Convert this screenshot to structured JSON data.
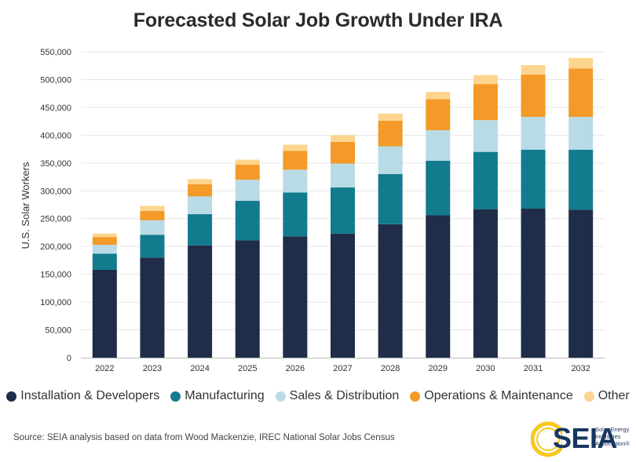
{
  "title": "Forecasted Solar Job Growth Under IRA",
  "source": "Source: SEIA analysis based on data from Wood Mackenzie, IREC National Solar Jobs Census",
  "logo": {
    "text": "SEIA",
    "tag_lines": [
      "Solar Energy",
      "Industries",
      "Association®"
    ]
  },
  "chart_data": {
    "type": "bar",
    "stacked": true,
    "title": "Forecasted Solar Job Growth Under IRA",
    "xlabel": "",
    "ylabel": "U.S. Solar Workers",
    "ylim": [
      0,
      550000
    ],
    "ytick_step": 50000,
    "ytick_labels": [
      "0",
      "50,000",
      "100,000",
      "150,000",
      "200,000",
      "250,000",
      "300,000",
      "350,000",
      "400,000",
      "450,000",
      "500,000",
      "550,000"
    ],
    "grid": true,
    "legend_position": "bottom",
    "categories": [
      "2022",
      "2023",
      "2024",
      "2025",
      "2026",
      "2027",
      "2028",
      "2029",
      "2030",
      "2031",
      "2032"
    ],
    "series": [
      {
        "name": "Installation & Developers",
        "color": "#1f2d48",
        "values": [
          158000,
          180000,
          202000,
          211000,
          218000,
          223000,
          240000,
          256000,
          267000,
          268000,
          266000
        ]
      },
      {
        "name": "Manufacturing",
        "color": "#127b8e",
        "values": [
          29000,
          41000,
          56000,
          71000,
          79000,
          83000,
          90000,
          98000,
          103000,
          106000,
          108000
        ]
      },
      {
        "name": "Sales & Distribution",
        "color": "#b9dbe6",
        "values": [
          16000,
          26000,
          32000,
          38000,
          41000,
          43000,
          50000,
          55000,
          57000,
          59000,
          59000
        ]
      },
      {
        "name": "Operations & Maintenance",
        "color": "#f39a29",
        "values": [
          14000,
          17000,
          22000,
          27000,
          34000,
          39000,
          46000,
          56000,
          65000,
          76000,
          87000
        ]
      },
      {
        "name": "Other",
        "color": "#fdd58f",
        "values": [
          6000,
          9000,
          9000,
          9000,
          11000,
          12000,
          13000,
          13000,
          16000,
          17000,
          19000
        ]
      }
    ]
  }
}
